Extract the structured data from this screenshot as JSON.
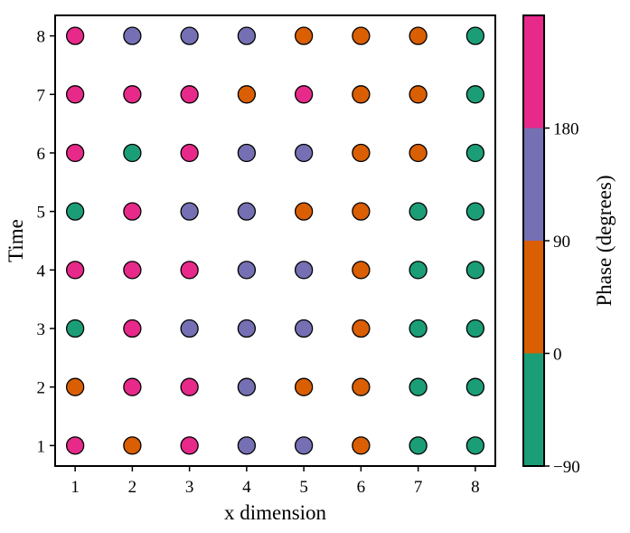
{
  "chart_data": {
    "type": "scatter",
    "xlabel": "x dimension",
    "ylabel": "Time",
    "x_ticks": [
      1,
      2,
      3,
      4,
      5,
      6,
      7,
      8
    ],
    "y_ticks": [
      1,
      2,
      3,
      4,
      5,
      6,
      7,
      8
    ],
    "xlim": [
      0.65,
      8.35
    ],
    "ylim": [
      0.65,
      8.35
    ],
    "grid": false,
    "colorbar": {
      "label": "Phase (degrees)",
      "ticks": [
        -90,
        0,
        90,
        180
      ],
      "range": [
        -90,
        270
      ],
      "bins": [
        {
          "from": -90,
          "to": 0,
          "color": "#1b9e77"
        },
        {
          "from": 0,
          "to": 90,
          "color": "#d95f02"
        },
        {
          "from": 90,
          "to": 180,
          "color": "#7570b3"
        },
        {
          "from": 180,
          "to": 270,
          "color": "#e7298a"
        }
      ]
    },
    "marker_edge_color": "#000000",
    "rows": [
      {
        "time": 8,
        "phase_bins": [
          4,
          3,
          3,
          3,
          2,
          2,
          2,
          1
        ]
      },
      {
        "time": 7,
        "phase_bins": [
          4,
          4,
          4,
          2,
          4,
          2,
          2,
          1
        ]
      },
      {
        "time": 6,
        "phase_bins": [
          4,
          1,
          4,
          3,
          3,
          2,
          2,
          1
        ]
      },
      {
        "time": 5,
        "phase_bins": [
          1,
          4,
          3,
          3,
          2,
          2,
          1,
          1
        ]
      },
      {
        "time": 4,
        "phase_bins": [
          4,
          4,
          4,
          3,
          3,
          2,
          1,
          1
        ]
      },
      {
        "time": 3,
        "phase_bins": [
          1,
          4,
          3,
          3,
          3,
          2,
          1,
          1
        ]
      },
      {
        "time": 2,
        "phase_bins": [
          2,
          4,
          4,
          3,
          2,
          2,
          1,
          1
        ]
      },
      {
        "time": 1,
        "phase_bins": [
          4,
          2,
          4,
          3,
          3,
          2,
          1,
          1
        ]
      }
    ]
  }
}
